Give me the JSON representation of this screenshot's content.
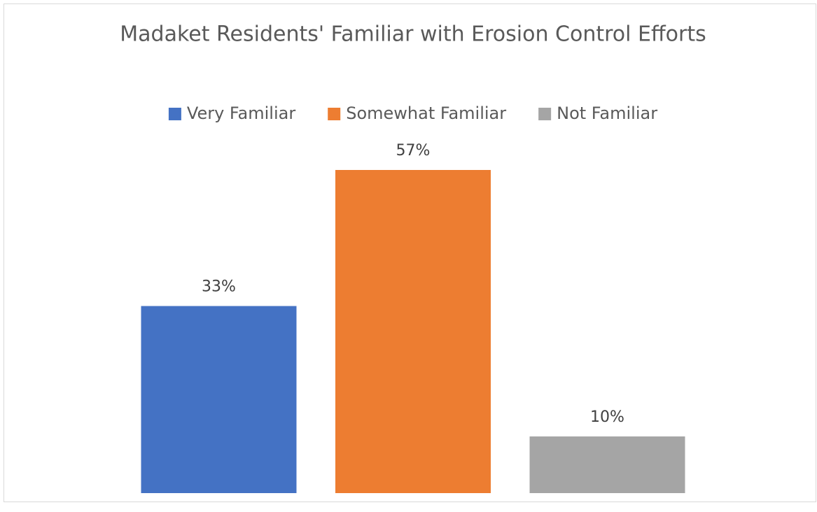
{
  "chart_data": {
    "type": "bar",
    "title": "Madaket Residents' Familiar with Erosion Control Efforts",
    "categories": [
      null
    ],
    "series": [
      {
        "name": "Very Familiar",
        "color": "#4472c4",
        "values": [
          33
        ],
        "value_labels": [
          "33%"
        ]
      },
      {
        "name": "Somewhat Familiar",
        "color": "#ed7d31",
        "values": [
          57
        ],
        "value_labels": [
          "57%"
        ]
      },
      {
        "name": "Not Familiar",
        "color": "#a5a5a5",
        "values": [
          10
        ],
        "value_labels": [
          "10%"
        ]
      }
    ],
    "legend": "top"
  }
}
